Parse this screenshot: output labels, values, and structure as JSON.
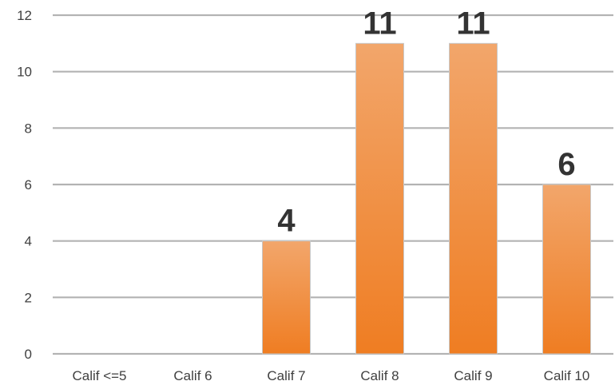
{
  "chart_data": {
    "type": "bar",
    "title": "",
    "xlabel": "",
    "ylabel": "",
    "categories": [
      "Calif <=5",
      "Calif 6",
      "Calif 7",
      "Calif  8",
      "Calif  9",
      "Calif  10"
    ],
    "values": [
      0,
      0,
      4,
      11,
      11,
      6
    ],
    "data_labels": [
      "",
      "",
      "4",
      "11",
      "11",
      "6"
    ],
    "y_ticks": [
      "0",
      "2",
      "4",
      "6",
      "8",
      "10",
      "12"
    ],
    "ylim": [
      0,
      12
    ],
    "grid": true,
    "legend": "none",
    "colors": {
      "bar_top": "#f2a66b",
      "bar_bottom": "#ef7d22",
      "bar_border": "#c8c8c8",
      "gridline": "#b3b3b3",
      "text": "#404040"
    }
  }
}
